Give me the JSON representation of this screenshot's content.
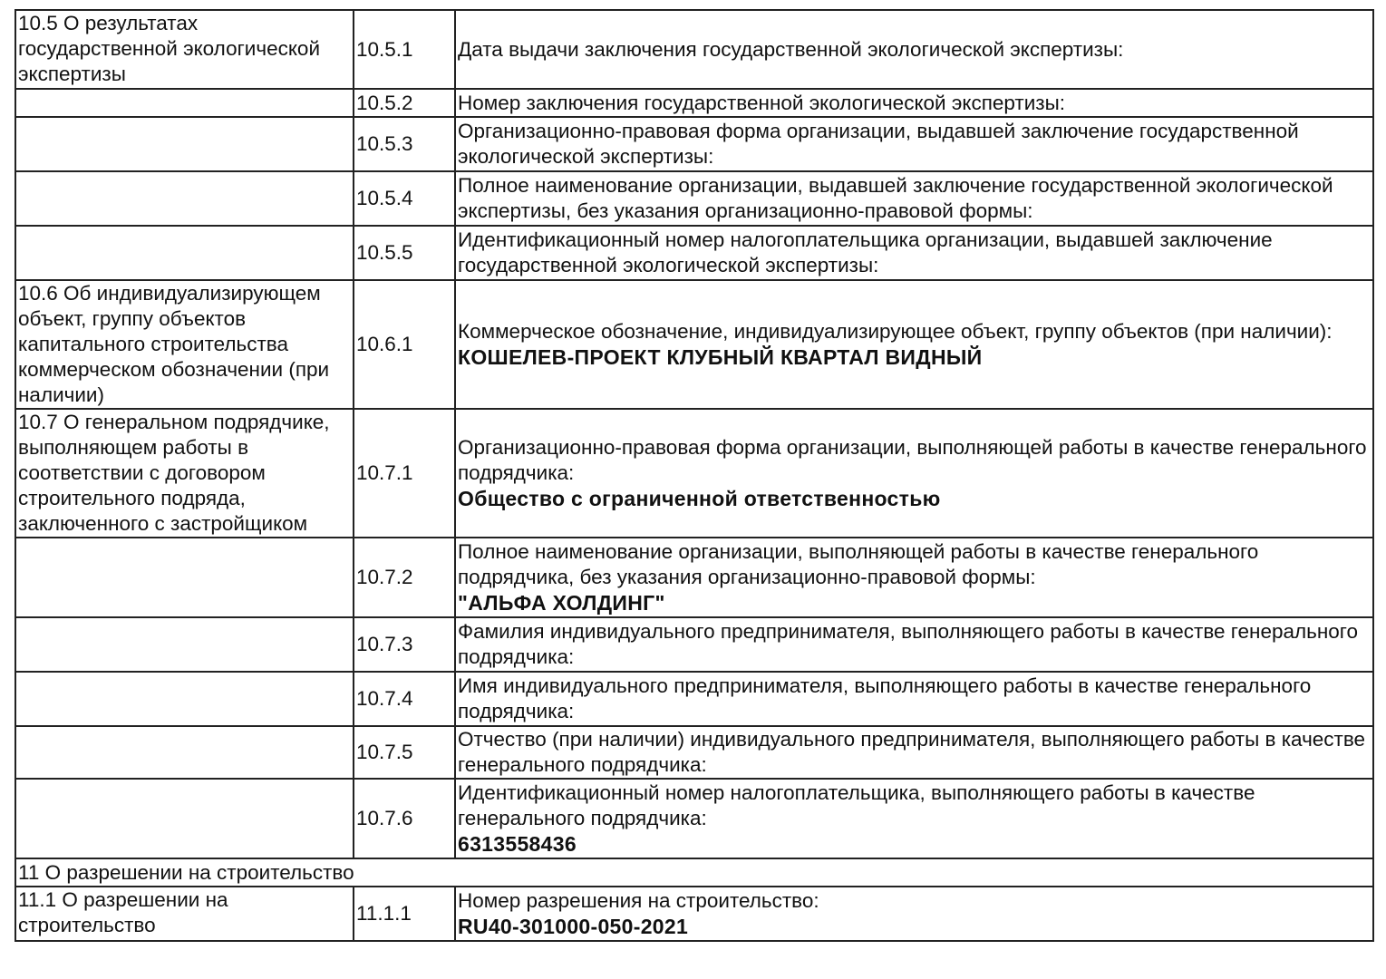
{
  "rows": [
    {
      "section": "10.5 О результатах государственной экологической экспертизы",
      "code": "10.5.1",
      "label": "Дата выдачи заключения государственной экологической экспертизы:",
      "value": ""
    },
    {
      "section": "",
      "code": "10.5.2",
      "label": "Номер заключения государственной экологической экспертизы:",
      "value": ""
    },
    {
      "section": "",
      "code": "10.5.3",
      "label": "Организационно-правовая форма организации, выдавшей заключение государственной экологической экспертизы:",
      "value": ""
    },
    {
      "section": "",
      "code": "10.5.4",
      "label": "Полное наименование организации, выдавшей заключение государственной экологической экспертизы, без указания организационно-правовой формы:",
      "value": ""
    },
    {
      "section": "",
      "code": "10.5.5",
      "label": "Идентификационный номер налогоплательщика организации, выдавшей заключение государственной экологической экспертизы:",
      "value": ""
    },
    {
      "section": "10.6 Об индивидуализирующем объект, группу объектов капитального строительства коммерческом обозначении (при наличии)",
      "code": "10.6.1",
      "label": "Коммерческое обозначение, индивидуализирующее объект, группу объектов (при наличии):",
      "value": "КОШЕЛЕВ-ПРОЕКТ КЛУБНЫЙ КВАРТАЛ ВИДНЫЙ"
    },
    {
      "section": "10.7 О генеральном подрядчике, выполняющем работы в соответствии с договором строительного подряда, заключенного с застройщиком",
      "code": "10.7.1",
      "label": "Организационно-правовая форма организации, выполняющей работы в качестве генерального подрядчика:",
      "value": "Общество с ограниченной ответственностью"
    },
    {
      "section": "",
      "code": "10.7.2",
      "label": "Полное наименование организации, выполняющей работы в качестве генерального подрядчика, без указания организационно-правовой формы:",
      "value": "\"АЛЬФА ХОЛДИНГ\""
    },
    {
      "section": "",
      "code": "10.7.3",
      "label": "Фамилия индивидуального предпринимателя, выполняющего работы в качестве генерального подрядчика:",
      "value": ""
    },
    {
      "section": "",
      "code": "10.7.4",
      "label": "Имя индивидуального предпринимателя, выполняющего работы в качестве генерального подрядчика:",
      "value": ""
    },
    {
      "section": "",
      "code": "10.7.5",
      "label": "Отчество (при наличии) индивидуального предпринимателя, выполняющего работы в качестве генерального подрядчика:",
      "value": ""
    },
    {
      "section": "",
      "code": "10.7.6",
      "label": "Идентификационный номер налогоплательщика, выполняющего работы в качестве генерального подрядчика:",
      "value": "6313558436"
    }
  ],
  "section11": {
    "title": "11 О разрешении на строительство"
  },
  "row11": {
    "section": "11.1 О разрешении на строительство",
    "code": "11.1.1",
    "label": "Номер разрешения на строительство:",
    "value": "RU40-301000-050-2021"
  }
}
